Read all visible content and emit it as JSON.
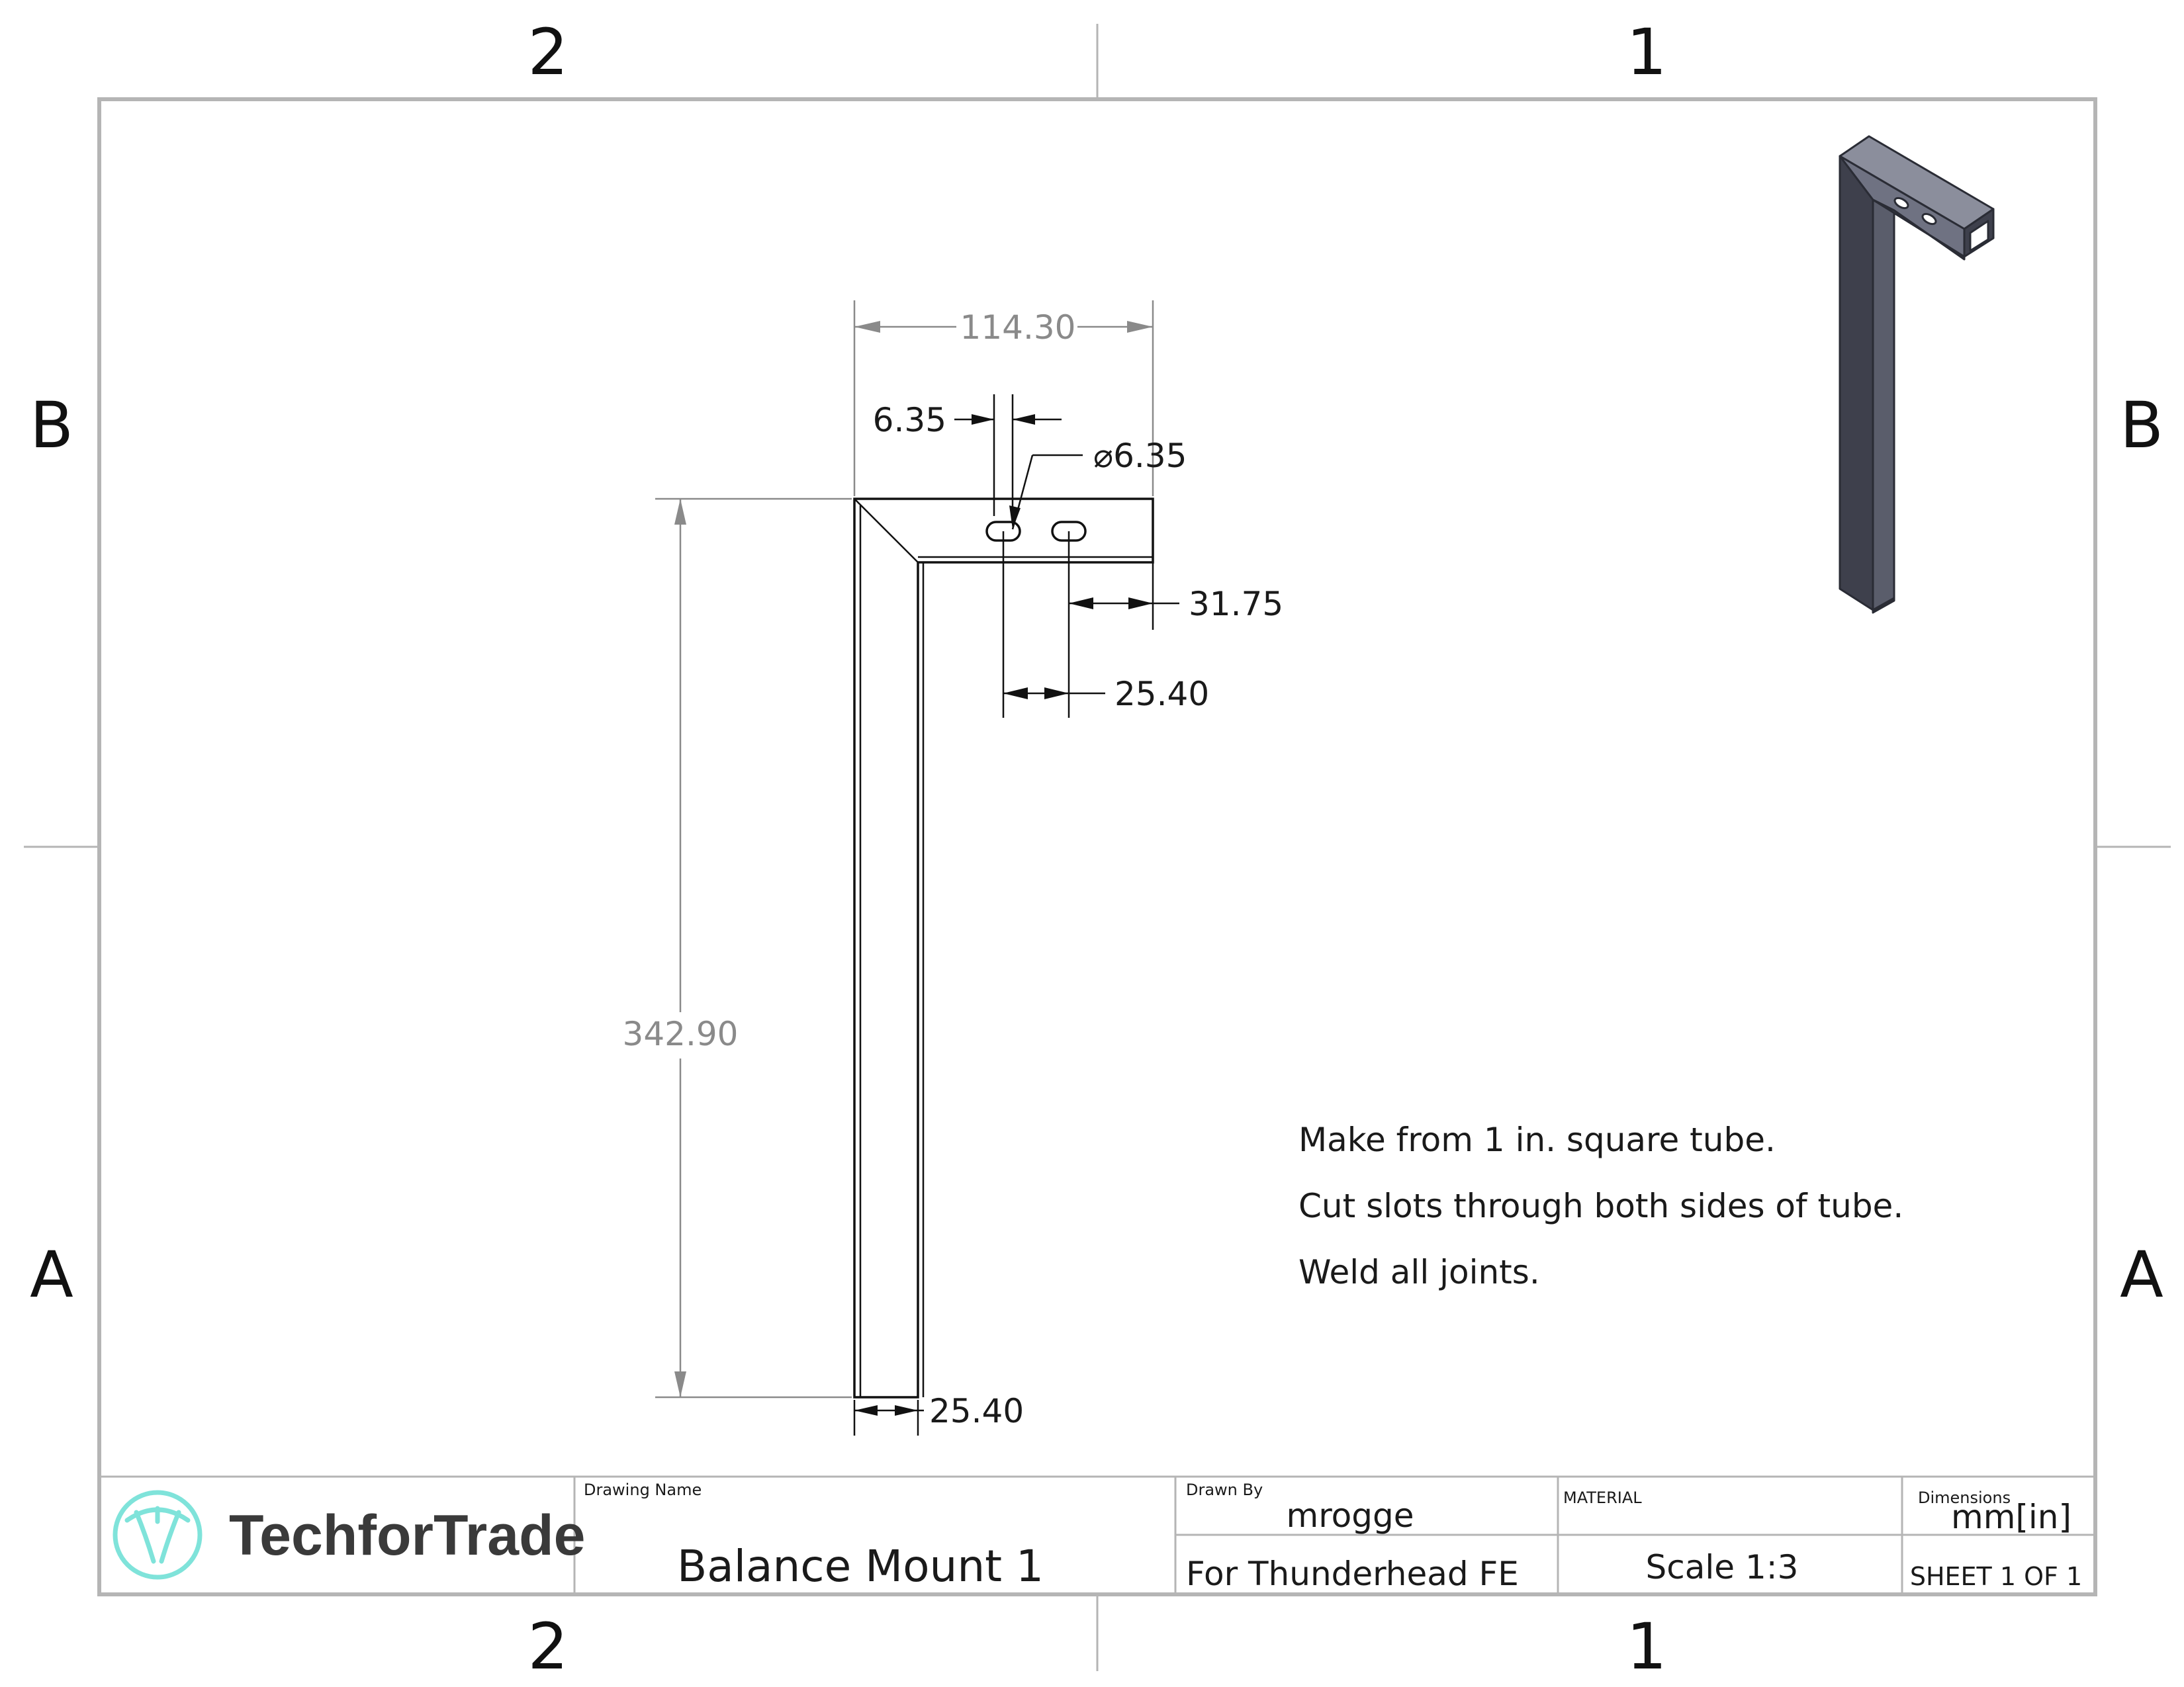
{
  "zones": {
    "col_left": "2",
    "col_right": "1",
    "row_top": "B",
    "row_bottom": "A"
  },
  "dimensions": {
    "overall_width": "114.30",
    "slot_width": "6.35",
    "slot_diameter": "⌀6.35",
    "edge_offset": "31.75",
    "slot_spacing": "25.40",
    "overall_height": "342.90",
    "tube_width": "25.40"
  },
  "notes": [
    "Make from 1 in. square tube.",
    "Cut slots through both sides of tube.",
    "Weld all joints."
  ],
  "title_block": {
    "logo_text": "TechforTrade",
    "drawing_name_label": "Drawing Name",
    "drawing_name": "Balance Mount 1",
    "drawn_by_label": "Drawn By",
    "drawn_by": "mrogge",
    "project": "For Thunderhead FE",
    "material_label": "MATERIAL",
    "scale": "Scale 1:3",
    "dimensions_label": "Dimensions",
    "units": "mm[in]",
    "sheet": "SHEET 1 OF 1"
  },
  "colors": {
    "border": "#b5b5b5",
    "dimension_gray": "#8a8a8a",
    "logo_teal": "#7fe3da",
    "iso_dark": "#4a4d5a",
    "iso_face": "#8b8e9c"
  }
}
